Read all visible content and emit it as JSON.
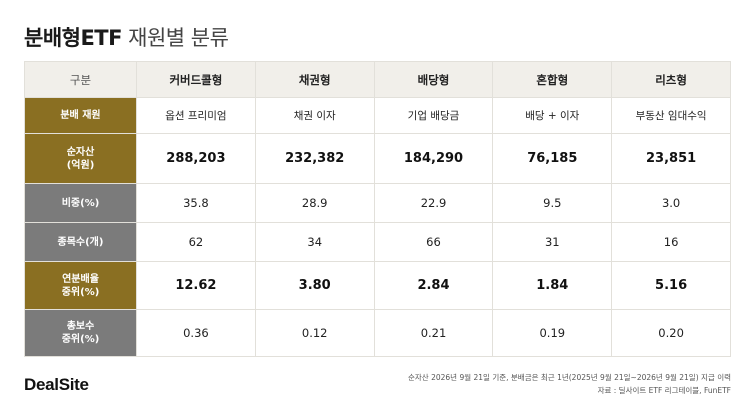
{
  "title": {
    "bold": "분배형ETF",
    "rest": "재원별 분류"
  },
  "table": {
    "corner": "구분",
    "columns": [
      "커버드콜형",
      "채권형",
      "배당형",
      "혼합형",
      "리츠형"
    ],
    "rows": [
      {
        "label": "분배 재원",
        "values": [
          "옵션 프리미엄",
          "채권 이자",
          "기업 배당금",
          "배당 + 이자",
          "부동산 임대수익"
        ]
      },
      {
        "label": "순자산\n(억원)",
        "values": [
          "288,203",
          "232,382",
          "184,290",
          "76,185",
          "23,851"
        ]
      },
      {
        "label": "비중(%)",
        "values": [
          "35.8",
          "28.9",
          "22.9",
          "9.5",
          "3.0"
        ]
      },
      {
        "label": "종목수(개)",
        "values": [
          "62",
          "34",
          "66",
          "31",
          "16"
        ]
      },
      {
        "label": "연분배율\n중위(%)",
        "values": [
          "12.62",
          "3.80",
          "2.84",
          "1.84",
          "5.16"
        ]
      },
      {
        "label": "총보수\n중위(%)",
        "values": [
          "0.36",
          "0.12",
          "0.21",
          "0.19",
          "0.20"
        ]
      }
    ]
  },
  "colors": {
    "gold_label": "#8a6f22",
    "gray_label": "#7b7b7b",
    "header_bg": "#f1efea"
  },
  "footer": {
    "brand": "DealSite",
    "note1": "순자산 2026년 9월 21일 기준, 분배금은 최근 1년(2025년 9월 21일~2026년 9월 21일) 지급 이력",
    "note2": "자료 : 딜사이트 ETF 리그테이블, FunETF"
  }
}
